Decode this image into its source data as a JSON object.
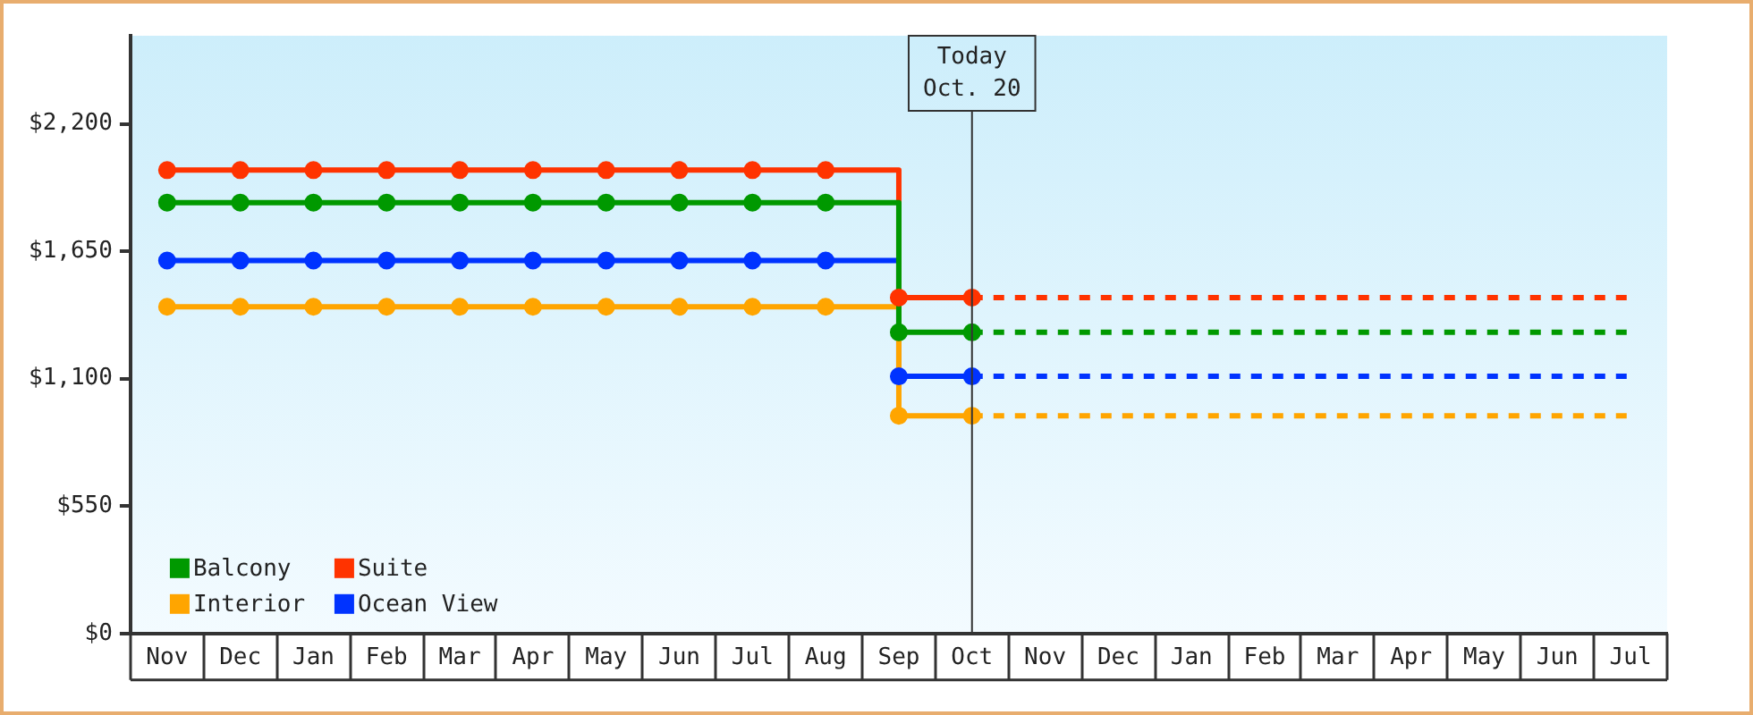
{
  "chart_data": {
    "type": "step",
    "categories": [
      "Nov",
      "Dec",
      "Jan",
      "Feb",
      "Mar",
      "Apr",
      "May",
      "Jun",
      "Jul",
      "Aug",
      "Sep",
      "Oct",
      "Nov",
      "Dec",
      "Jan",
      "Feb",
      "Mar",
      "Apr",
      "May",
      "Jun",
      "Jul"
    ],
    "ylim": [
      0,
      2580
    ],
    "yticks": [
      {
        "value": 0,
        "label": "$0"
      },
      {
        "value": 550,
        "label": "$550"
      },
      {
        "value": 1100,
        "label": "$1,100"
      },
      {
        "value": 1650,
        "label": "$1,650"
      },
      {
        "value": 2200,
        "label": "$2,200"
      }
    ],
    "grid": false,
    "legend": "bottom left",
    "series": [
      {
        "name": "Balcony",
        "color": "#009900",
        "marker": "circle",
        "line_style": "solid",
        "values": [
          1860,
          1860,
          1860,
          1860,
          1860,
          1860,
          1860,
          1860,
          1860,
          1860,
          1300,
          1300,
          null,
          null,
          null,
          null,
          null,
          null,
          null,
          null,
          null
        ]
      },
      {
        "name": "Suite",
        "color": "#ff3300",
        "marker": "circle",
        "line_style": "solid",
        "values": [
          2000,
          2000,
          2000,
          2000,
          2000,
          2000,
          2000,
          2000,
          2000,
          2000,
          1450,
          1450,
          null,
          null,
          null,
          null,
          null,
          null,
          null,
          null,
          null
        ]
      },
      {
        "name": "Interior",
        "color": "#ffa500",
        "marker": "circle",
        "line_style": "solid",
        "values": [
          1410,
          1410,
          1410,
          1410,
          1410,
          1410,
          1410,
          1410,
          1410,
          1410,
          940,
          940,
          null,
          null,
          null,
          null,
          null,
          null,
          null,
          null,
          null
        ]
      },
      {
        "name": "Ocean View",
        "color": "#0033ff",
        "marker": "circle",
        "line_style": "solid",
        "values": [
          1610,
          1610,
          1610,
          1610,
          1610,
          1610,
          1610,
          1610,
          1610,
          1610,
          1110,
          1110,
          null,
          null,
          null,
          null,
          null,
          null,
          null,
          null,
          null
        ]
      },
      {
        "color": "#009900",
        "marker": "none",
        "line_style": "dashed",
        "values": [
          null,
          null,
          null,
          null,
          null,
          null,
          null,
          null,
          null,
          null,
          null,
          1300,
          1300,
          1300,
          1300,
          1300,
          1300,
          1300,
          1300,
          1300,
          1300
        ]
      },
      {
        "color": "#ff3300",
        "marker": "none",
        "line_style": "dashed",
        "values": [
          null,
          null,
          null,
          null,
          null,
          null,
          null,
          null,
          null,
          null,
          null,
          1450,
          1450,
          1450,
          1450,
          1450,
          1450,
          1450,
          1450,
          1450,
          1450
        ]
      },
      {
        "color": "#ffa500",
        "marker": "none",
        "line_style": "dashed",
        "values": [
          null,
          null,
          null,
          null,
          null,
          null,
          null,
          null,
          null,
          null,
          null,
          940,
          940,
          940,
          940,
          940,
          940,
          940,
          940,
          940,
          940
        ]
      },
      {
        "color": "#0033ff",
        "marker": "none",
        "line_style": "dashed",
        "values": [
          null,
          null,
          null,
          null,
          null,
          null,
          null,
          null,
          null,
          null,
          null,
          1110,
          1110,
          1110,
          1110,
          1110,
          1110,
          1110,
          1110,
          1110,
          1110
        ]
      }
    ],
    "ref_lines": [
      {
        "axis": "x",
        "value": "Oct",
        "label": "Today\nOct. 20",
        "color": "#333333"
      }
    ]
  }
}
